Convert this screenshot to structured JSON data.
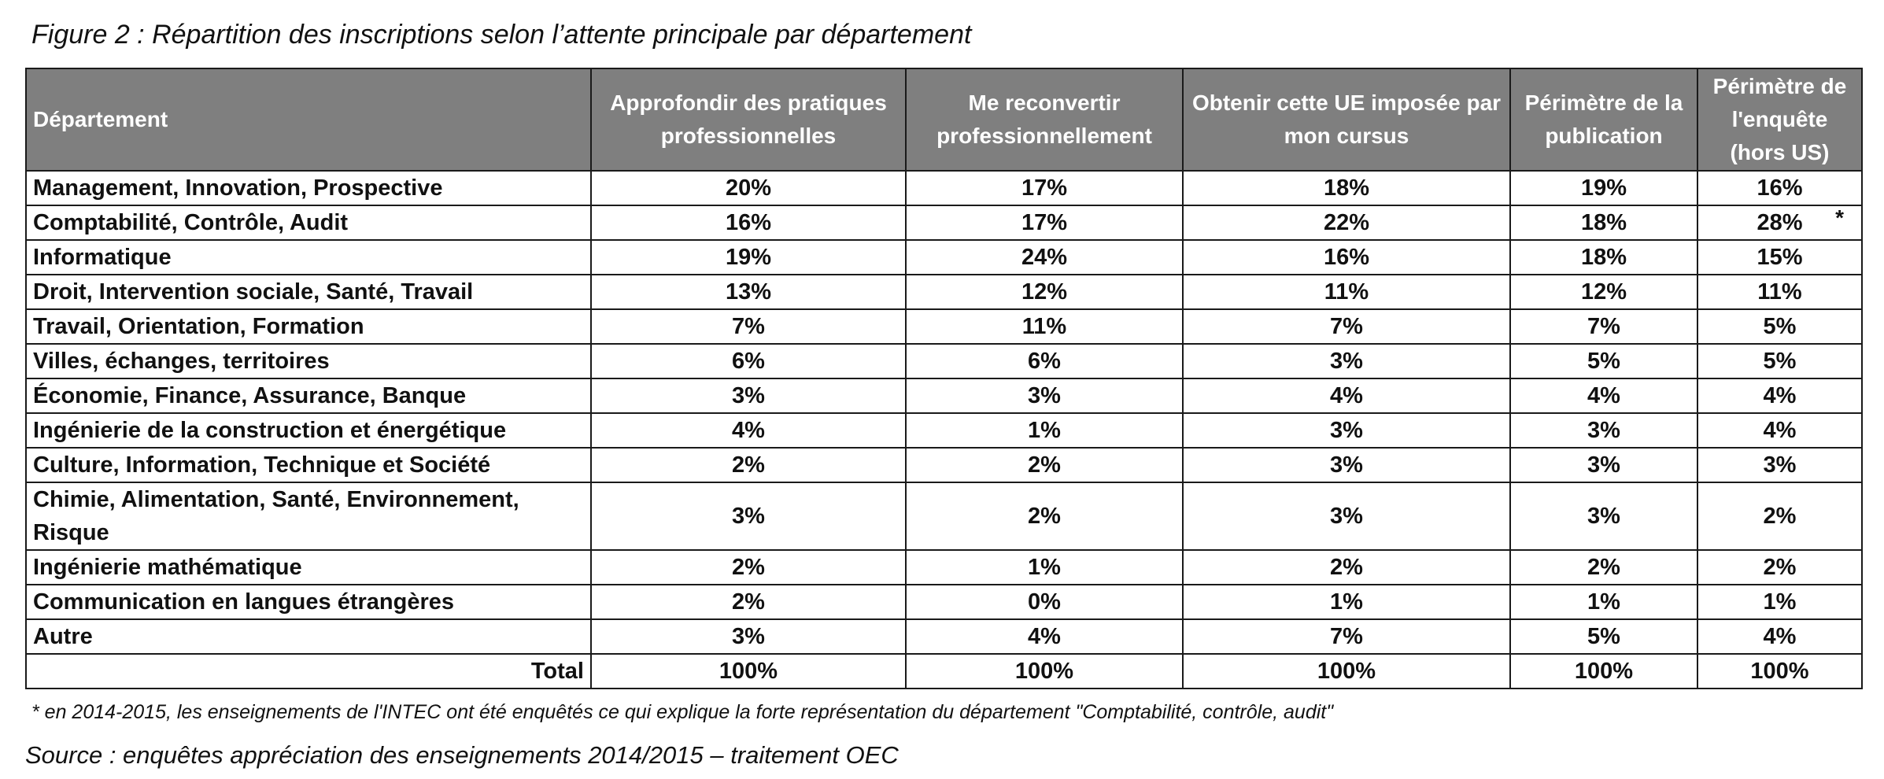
{
  "chart_data": {
    "type": "table",
    "title": "Figure 2 : Répartition des inscriptions selon l’attente principale par département",
    "columns": [
      "Département",
      "Approfondir des pratiques professionnelles",
      "Me reconvertir professionnellement",
      "Obtenir cette UE imposée par mon cursus",
      "Périmètre de la publication",
      "Périmètre de l'enquête (hors US)"
    ],
    "rows": [
      {
        "label": "Management, Innovation, Prospective",
        "values": [
          "20%",
          "17%",
          "18%",
          "19%",
          "16%"
        ]
      },
      {
        "label": "Comptabilité, Contrôle, Audit",
        "values": [
          "16%",
          "17%",
          "22%",
          "18%",
          "28%"
        ],
        "note_mark": "*"
      },
      {
        "label": "Informatique",
        "values": [
          "19%",
          "24%",
          "16%",
          "18%",
          "15%"
        ]
      },
      {
        "label": "Droit, Intervention sociale, Santé, Travail",
        "values": [
          "13%",
          "12%",
          "11%",
          "12%",
          "11%"
        ]
      },
      {
        "label": "Travail, Orientation, Formation",
        "values": [
          "7%",
          "11%",
          "7%",
          "7%",
          "5%"
        ]
      },
      {
        "label": "Villes, échanges, territoires",
        "values": [
          "6%",
          "6%",
          "3%",
          "5%",
          "5%"
        ]
      },
      {
        "label": "Économie, Finance, Assurance, Banque",
        "values": [
          "3%",
          "3%",
          "4%",
          "4%",
          "4%"
        ]
      },
      {
        "label": "Ingénierie de la construction et énergétique",
        "values": [
          "4%",
          "1%",
          "3%",
          "3%",
          "4%"
        ]
      },
      {
        "label": "Culture, Information, Technique et Société",
        "values": [
          "2%",
          "2%",
          "3%",
          "3%",
          "3%"
        ]
      },
      {
        "label": "Chimie, Alimentation, Santé, Environnement, Risque",
        "values": [
          "3%",
          "2%",
          "3%",
          "3%",
          "2%"
        ]
      },
      {
        "label": "Ingénierie mathématique",
        "values": [
          "2%",
          "1%",
          "2%",
          "2%",
          "2%"
        ]
      },
      {
        "label": "Communication en langues étrangères",
        "values": [
          "2%",
          "0%",
          "1%",
          "1%",
          "1%"
        ]
      },
      {
        "label": "Autre",
        "values": [
          "3%",
          "4%",
          "7%",
          "5%",
          "4%"
        ]
      }
    ],
    "total": {
      "label": "Total",
      "values": [
        "100%",
        "100%",
        "100%",
        "100%",
        "100%"
      ]
    },
    "footnote": "* en 2014-2015, les enseignements de l'INTEC ont été enquêtés ce qui explique la forte représentation du département \"Comptabilité, contrôle, audit\"",
    "source": "Source : enquêtes appréciation des enseignements 2014/2015 – traitement OEC",
    "header_background": "#7f7f7f",
    "header_text_color": "#ffffff",
    "border_color": "#1a1a1a"
  }
}
